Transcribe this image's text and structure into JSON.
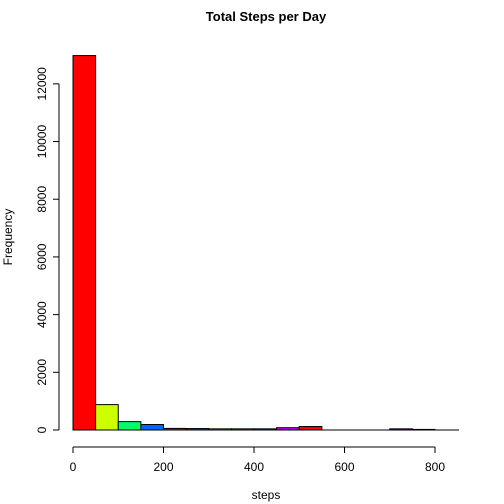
{
  "chart_data": {
    "type": "bar",
    "title": "Total Steps per Day",
    "xlabel": "steps",
    "ylabel": "Frequency",
    "bin_width": 50,
    "bins": [
      {
        "start": 0,
        "end": 50,
        "value": 12980,
        "color": "#FF0000"
      },
      {
        "start": 50,
        "end": 100,
        "value": 880,
        "color": "#CCFF00"
      },
      {
        "start": 100,
        "end": 150,
        "value": 290,
        "color": "#00FF66"
      },
      {
        "start": 150,
        "end": 200,
        "value": 190,
        "color": "#0066FF"
      },
      {
        "start": 200,
        "end": 250,
        "value": 55,
        "color": "#CC00FF"
      },
      {
        "start": 250,
        "end": 300,
        "value": 50,
        "color": "#FF0000"
      },
      {
        "start": 300,
        "end": 350,
        "value": 40,
        "color": "#CCFF00"
      },
      {
        "start": 350,
        "end": 400,
        "value": 40,
        "color": "#00FF66"
      },
      {
        "start": 400,
        "end": 450,
        "value": 40,
        "color": "#0066FF"
      },
      {
        "start": 450,
        "end": 500,
        "value": 80,
        "color": "#CC00FF"
      },
      {
        "start": 500,
        "end": 550,
        "value": 120,
        "color": "#FF0000"
      },
      {
        "start": 550,
        "end": 600,
        "value": 0,
        "color": "#CCFF00"
      },
      {
        "start": 600,
        "end": 650,
        "value": 0,
        "color": "#00FF66"
      },
      {
        "start": 650,
        "end": 700,
        "value": 0,
        "color": "#0066FF"
      },
      {
        "start": 700,
        "end": 750,
        "value": 40,
        "color": "#CC00FF"
      },
      {
        "start": 750,
        "end": 800,
        "value": 20,
        "color": "#FF0000"
      }
    ],
    "xlim": [
      0,
      850
    ],
    "ylim": [
      0,
      13000
    ],
    "x_ticks": [
      0,
      200,
      400,
      600,
      800
    ],
    "y_ticks": [
      0,
      2000,
      4000,
      6000,
      8000,
      10000,
      12000
    ],
    "grid": false,
    "legend": "none"
  }
}
